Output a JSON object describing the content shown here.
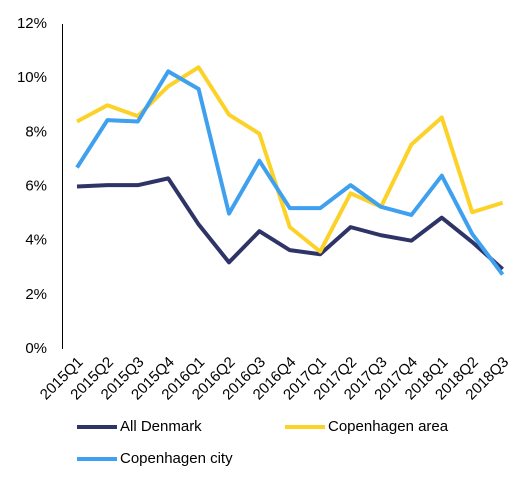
{
  "chart_data": {
    "type": "line",
    "categories": [
      "2015Q1",
      "2015Q2",
      "2015Q3",
      "2015Q4",
      "2016Q1",
      "2016Q2",
      "2016Q3",
      "2016Q4",
      "2017Q1",
      "2017Q2",
      "2017Q3",
      "2017Q4",
      "2018Q1",
      "2018Q2",
      "2018Q3"
    ],
    "series": [
      {
        "name": "All Denmark",
        "color": "#2e3466",
        "values": [
          6.0,
          6.05,
          6.05,
          6.3,
          4.6,
          3.2,
          4.35,
          3.65,
          3.5,
          4.5,
          4.2,
          4.0,
          4.85,
          3.95,
          2.95
        ]
      },
      {
        "name": "Copenhagen area",
        "color": "#fcd229",
        "values": [
          8.4,
          9.0,
          8.6,
          9.7,
          10.4,
          8.65,
          7.95,
          4.5,
          3.6,
          5.75,
          5.25,
          7.55,
          8.55,
          5.05,
          5.4
        ]
      },
      {
        "name": "Copenhagen city",
        "color": "#3ea0ef",
        "values": [
          6.7,
          8.45,
          8.4,
          10.25,
          9.6,
          5.0,
          6.95,
          5.2,
          5.2,
          6.05,
          5.25,
          4.95,
          6.4,
          4.25,
          2.75
        ]
      }
    ],
    "ylim": [
      0,
      12
    ],
    "yticks": [
      {
        "value": 0,
        "label": "0%"
      },
      {
        "value": 2,
        "label": "2%"
      },
      {
        "value": 4,
        "label": "4%"
      },
      {
        "value": 6,
        "label": "6%"
      },
      {
        "value": 8,
        "label": "8%"
      },
      {
        "value": 10,
        "label": "10%"
      },
      {
        "value": 12,
        "label": "12%"
      }
    ],
    "grid": false
  }
}
